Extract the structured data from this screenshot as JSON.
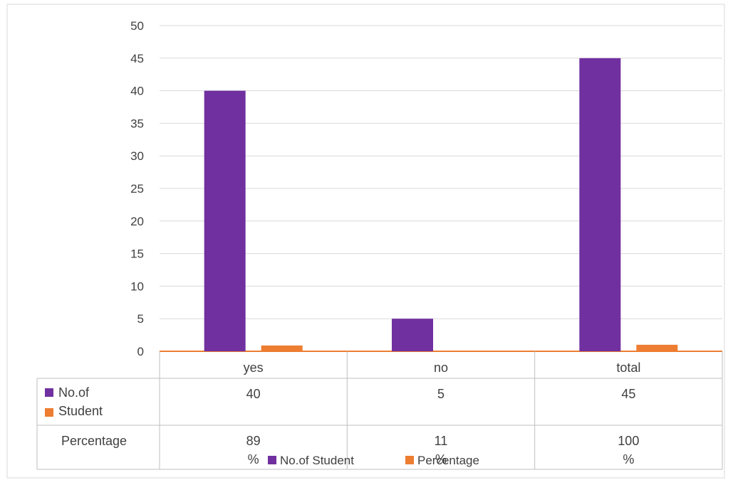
{
  "chart_data": {
    "type": "bar",
    "title": "",
    "xlabel": "",
    "ylabel": "",
    "categories": [
      "yes",
      "no",
      "total"
    ],
    "series": [
      {
        "name": "No.of Student",
        "values": [
          40,
          5,
          45
        ],
        "color": "#7030A0"
      },
      {
        "name": "Percentage",
        "values": [
          0.89,
          0.11,
          1.0
        ],
        "color": "#ED7D31"
      }
    ],
    "ylim": [
      0,
      50
    ],
    "yticks": [
      0,
      5,
      10,
      15,
      20,
      25,
      30,
      35,
      40,
      45,
      50
    ],
    "grid": true,
    "legend_position": "bottom",
    "data_table": {
      "row_labels": [
        "No.of Student",
        "Percentage"
      ],
      "rows": [
        [
          "40",
          "5",
          "45"
        ],
        [
          "89 %",
          "11 %",
          "100 %"
        ]
      ]
    }
  }
}
